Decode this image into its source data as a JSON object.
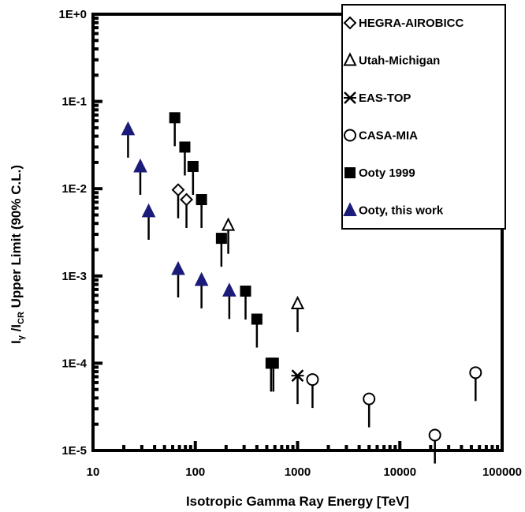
{
  "chart_data": {
    "type": "scatter",
    "xlabel": "Isotropic Gamma Ray Energy [TeV]",
    "ylabel_parts": {
      "main_a": "I",
      "sub_a": "γ",
      "slash": " /I",
      "sub_b": "CR",
      "rest": " Upper Limit (90% C.L.)"
    },
    "x_scale": "log",
    "y_scale": "log",
    "xlim": [
      10,
      100000
    ],
    "ylim": [
      1e-05,
      1
    ],
    "x_ticks": [
      {
        "value": 10,
        "label": "10"
      },
      {
        "value": 100,
        "label": "100"
      },
      {
        "value": 1000,
        "label": "1000"
      },
      {
        "value": 10000,
        "label": "10000"
      },
      {
        "value": 100000,
        "label": "100000"
      }
    ],
    "y_ticks": [
      {
        "value": 1,
        "label": "1E+0"
      },
      {
        "value": 0.1,
        "label": "1E-1"
      },
      {
        "value": 0.01,
        "label": "1E-2"
      },
      {
        "value": 0.001,
        "label": "1E-3"
      },
      {
        "value": 0.0001,
        "label": "1E-4"
      },
      {
        "value": 1e-05,
        "label": "1E-5"
      }
    ],
    "upper_limit_arrows": true,
    "legend_position": "top-right",
    "series": [
      {
        "name": "HEGRA-AIROBICC",
        "marker": "diamond-open",
        "color": "#000000",
        "points": [
          {
            "x": 68,
            "y": 0.0097
          },
          {
            "x": 82,
            "y": 0.0075
          }
        ]
      },
      {
        "name": "Utah-Michigan",
        "marker": "triangle-open",
        "color": "#000000",
        "points": [
          {
            "x": 210,
            "y": 0.0038
          },
          {
            "x": 1000,
            "y": 0.00048
          }
        ]
      },
      {
        "name": "EAS-TOP",
        "marker": "cross",
        "color": "#000000",
        "points": [
          {
            "x": 1000,
            "y": 7.2e-05
          }
        ]
      },
      {
        "name": "CASA-MIA",
        "marker": "circle-open",
        "color": "#000000",
        "points": [
          {
            "x": 1400,
            "y": 6.5e-05
          },
          {
            "x": 5000,
            "y": 3.9e-05
          },
          {
            "x": 22000,
            "y": 1.5e-05
          },
          {
            "x": 55000,
            "y": 7.8e-05
          }
        ]
      },
      {
        "name": "Ooty 1999",
        "marker": "square-filled",
        "color": "#000000",
        "points": [
          {
            "x": 63,
            "y": 0.065
          },
          {
            "x": 79,
            "y": 0.03
          },
          {
            "x": 95,
            "y": 0.018
          },
          {
            "x": 115,
            "y": 0.0075
          },
          {
            "x": 180,
            "y": 0.0027
          },
          {
            "x": 310,
            "y": 0.00067
          },
          {
            "x": 400,
            "y": 0.00032
          },
          {
            "x": 550,
            "y": 0.0001
          },
          {
            "x": 580,
            "y": 0.0001
          }
        ]
      },
      {
        "name": "Ooty, this work",
        "marker": "triangle-filled",
        "color": "#1b1b7a",
        "points": [
          {
            "x": 22,
            "y": 0.048
          },
          {
            "x": 29,
            "y": 0.018
          },
          {
            "x": 35,
            "y": 0.0055
          },
          {
            "x": 68,
            "y": 0.0012
          },
          {
            "x": 115,
            "y": 0.0009
          },
          {
            "x": 215,
            "y": 0.00068
          }
        ]
      }
    ]
  }
}
